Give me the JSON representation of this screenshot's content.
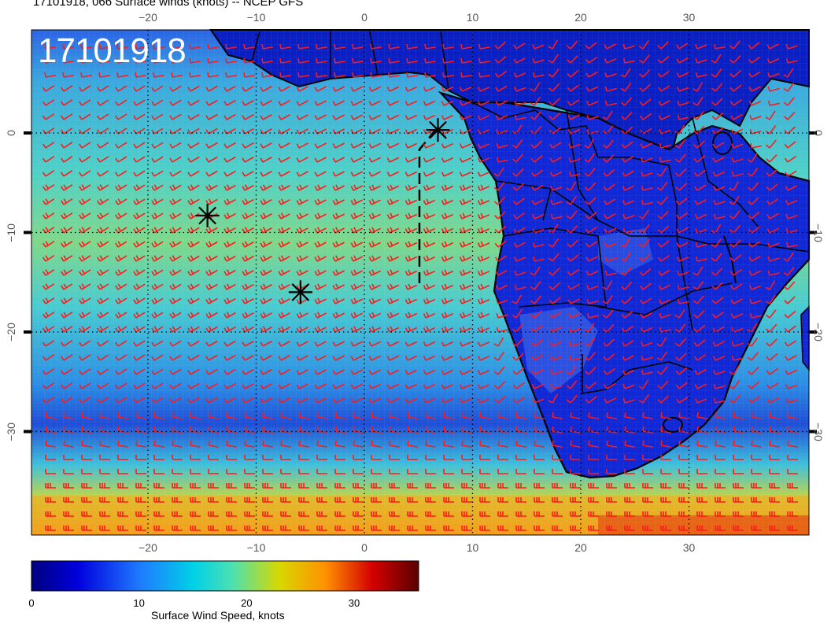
{
  "title": "17101918, 066 Surface winds (knots) -- NCEP GFS",
  "stamp": "17101918",
  "lon_labels": [
    {
      "value": -20,
      "text": "−20"
    },
    {
      "value": -10,
      "text": "−10"
    },
    {
      "value": 0,
      "text": "0"
    },
    {
      "value": 10,
      "text": "10"
    },
    {
      "value": 20,
      "text": "20"
    },
    {
      "value": 30,
      "text": "30"
    }
  ],
  "lat_labels": [
    {
      "value": 0,
      "text": "0"
    },
    {
      "value": -10,
      "text": "−10"
    },
    {
      "value": -20,
      "text": "−20"
    },
    {
      "value": -30,
      "text": "−30"
    }
  ],
  "colorbar": {
    "title": "Surface Wind Speed, knots",
    "min": 0,
    "max": 36,
    "ticks": [
      {
        "value": 0,
        "text": "0"
      },
      {
        "value": 10,
        "text": "10"
      },
      {
        "value": 20,
        "text": "20"
      },
      {
        "value": 30,
        "text": "30"
      }
    ],
    "colors": [
      "#00007f",
      "#0000cc",
      "#1e6aff",
      "#00c6e6",
      "#35e0b6",
      "#d0d400",
      "#ff8c00",
      "#d40000",
      "#6b0000"
    ]
  },
  "markers": [
    {
      "name": "asterisk-marker",
      "lon": 6.8,
      "lat": 0.3
    },
    {
      "name": "asterisk-marker",
      "lon": -14.5,
      "lat": -8.3
    },
    {
      "name": "asterisk-marker",
      "lon": -5.9,
      "lat": -16.0
    }
  ],
  "colors": {
    "barb": "#ff1a1a",
    "coast": "#000000",
    "land_low": "#0a1fc8",
    "ocean_mid": "#27b4d8",
    "ocean_high": "#8ad36a"
  }
}
